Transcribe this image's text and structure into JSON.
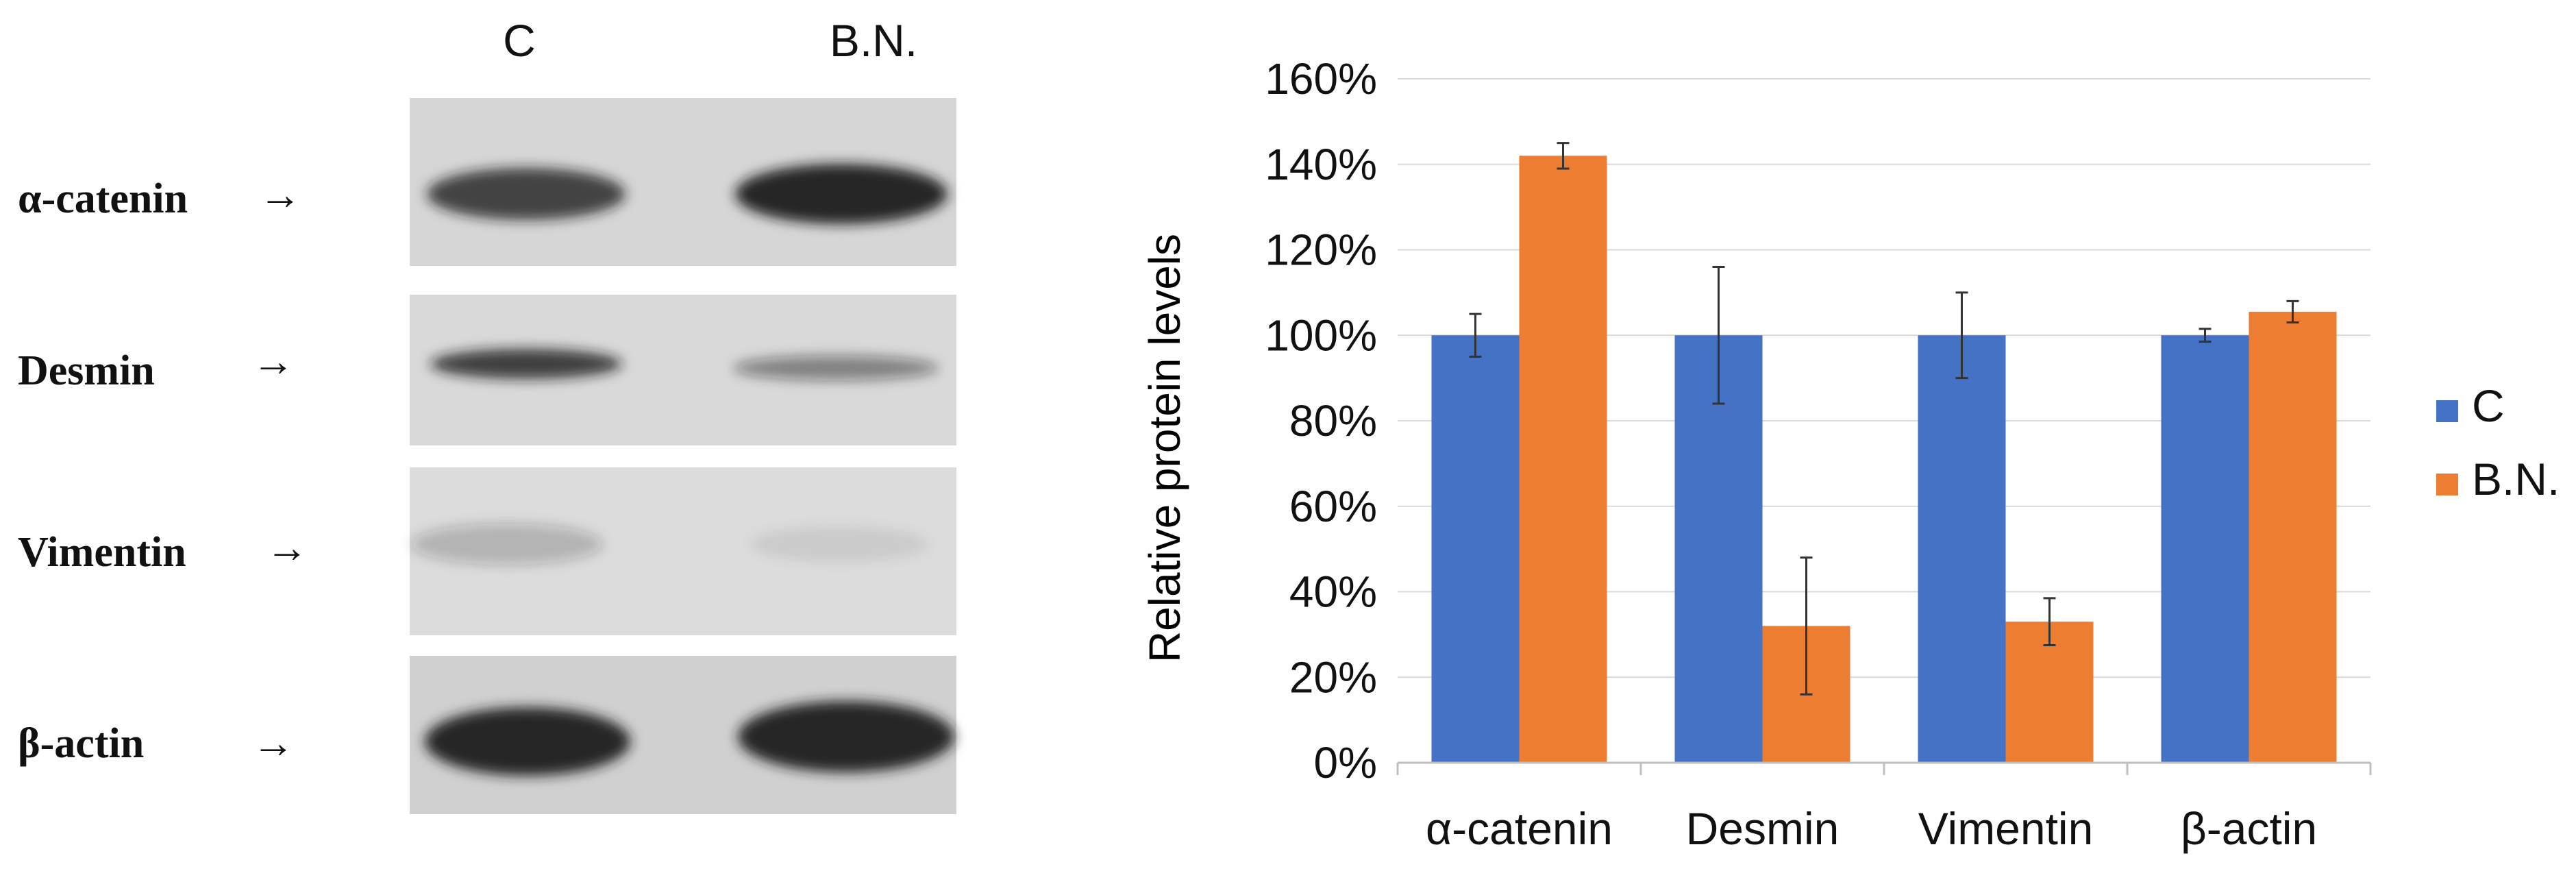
{
  "western_blot": {
    "lane_labels": [
      "C",
      "B.N."
    ],
    "rows": [
      {
        "label": "α-catenin",
        "arrow": "→",
        "band_intensity": [
          0.78,
          0.92
        ]
      },
      {
        "label": "Desmin",
        "arrow": "→",
        "band_intensity": [
          0.8,
          0.45
        ]
      },
      {
        "label": "Vimentin",
        "arrow": "→",
        "band_intensity": [
          0.22,
          0.08
        ]
      },
      {
        "label": "β-actin",
        "arrow": "→",
        "band_intensity": [
          0.95,
          0.95
        ]
      }
    ]
  },
  "chart_data": {
    "type": "bar",
    "title": "",
    "xlabel": "",
    "ylabel": "Relative protein levels",
    "categories": [
      "α-catenin",
      "Desmin",
      "Vimentin",
      "β-actin"
    ],
    "series": [
      {
        "name": "C",
        "color": "#4472C4",
        "values": [
          100,
          100,
          100,
          100
        ],
        "errors": [
          5,
          16,
          10,
          1.5
        ]
      },
      {
        "name": "B.N.",
        "color": "#ED7D31",
        "values": [
          142,
          32,
          33,
          105.5
        ],
        "errors": [
          3,
          16,
          5.5,
          2.5
        ]
      }
    ],
    "ylim": [
      0,
      160
    ],
    "yticks": [
      0,
      20,
      40,
      60,
      80,
      100,
      120,
      140,
      160
    ],
    "ytick_labels": [
      "0%",
      "20%",
      "40%",
      "60%",
      "80%",
      "100%",
      "120%",
      "140%",
      "160%"
    ],
    "grid": true,
    "legend_position": "right"
  }
}
